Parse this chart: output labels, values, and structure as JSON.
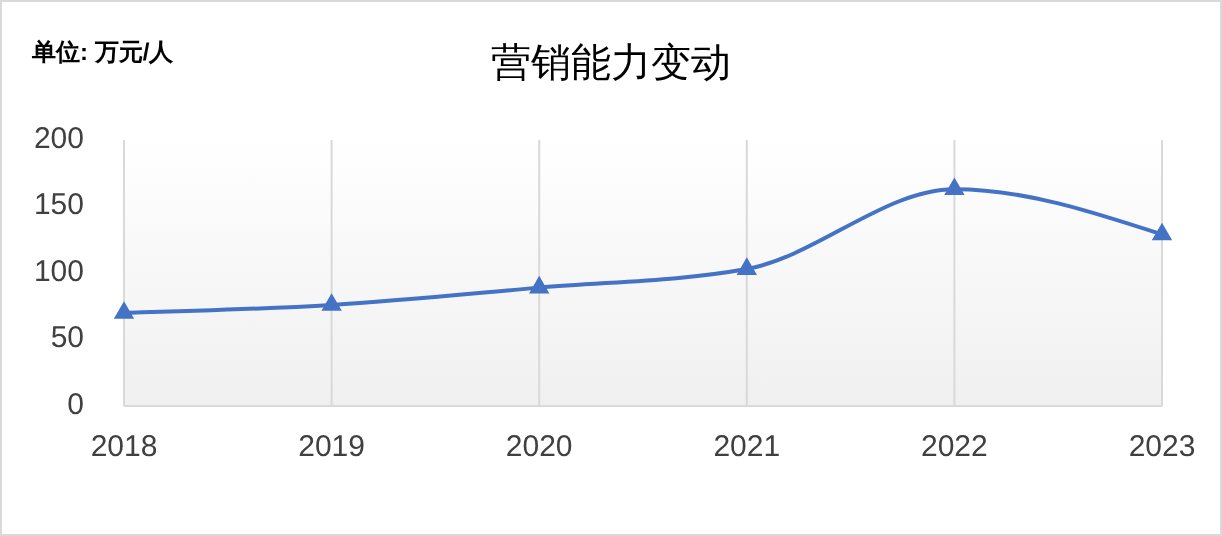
{
  "chart_data": {
    "type": "line",
    "title": "营销能力变动",
    "ylabel": "单位: 万元/人",
    "categories": [
      "2018",
      "2019",
      "2020",
      "2021",
      "2022",
      "2023"
    ],
    "series": [
      {
        "color": "#4472c4",
        "values": [
          70,
          76,
          89,
          103,
          163,
          129
        ]
      }
    ],
    "ylim": [
      0,
      200
    ],
    "yticks": [
      0,
      50,
      100,
      150,
      200
    ],
    "grid": "x",
    "marker": "triangle",
    "line_style": "solid"
  }
}
